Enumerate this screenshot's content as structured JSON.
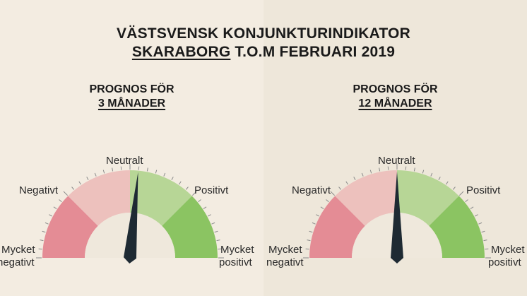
{
  "title": {
    "line1": "VÄSTSVENSK KONJUNKTURINDIKATOR",
    "line2_underlined": "SKARABORG",
    "line2_rest": " T.O.M FEBRUARI 2019"
  },
  "gauges": [
    {
      "heading_line1": "PROGNOS FÖR",
      "heading_line2": "3 MÅNADER",
      "needle_value": 0.53,
      "labels": {
        "very_negative_1": "Mycket",
        "very_negative_2": "negativt",
        "negative": "Negativt",
        "neutral": "Neutralt",
        "positive": "Positivt",
        "very_positive_1": "Mycket",
        "very_positive_2": "positivt"
      }
    },
    {
      "heading_line1": "PROGNOS FÖR",
      "heading_line2": "12 MÅNADER",
      "needle_value": 0.5,
      "labels": {
        "very_negative_1": "Mycket",
        "very_negative_2": "negativt",
        "negative": "Negativt",
        "neutral": "Neutralt",
        "positive": "Positivt",
        "very_positive_1": "Mycket",
        "very_positive_2": "positivt"
      }
    }
  ],
  "colors": {
    "very_negative": "#e48c95",
    "negative": "#edc1bd",
    "positive": "#b7d696",
    "very_positive": "#8bc462",
    "needle": "#1e2a33",
    "hub": "#efe8dc"
  }
}
